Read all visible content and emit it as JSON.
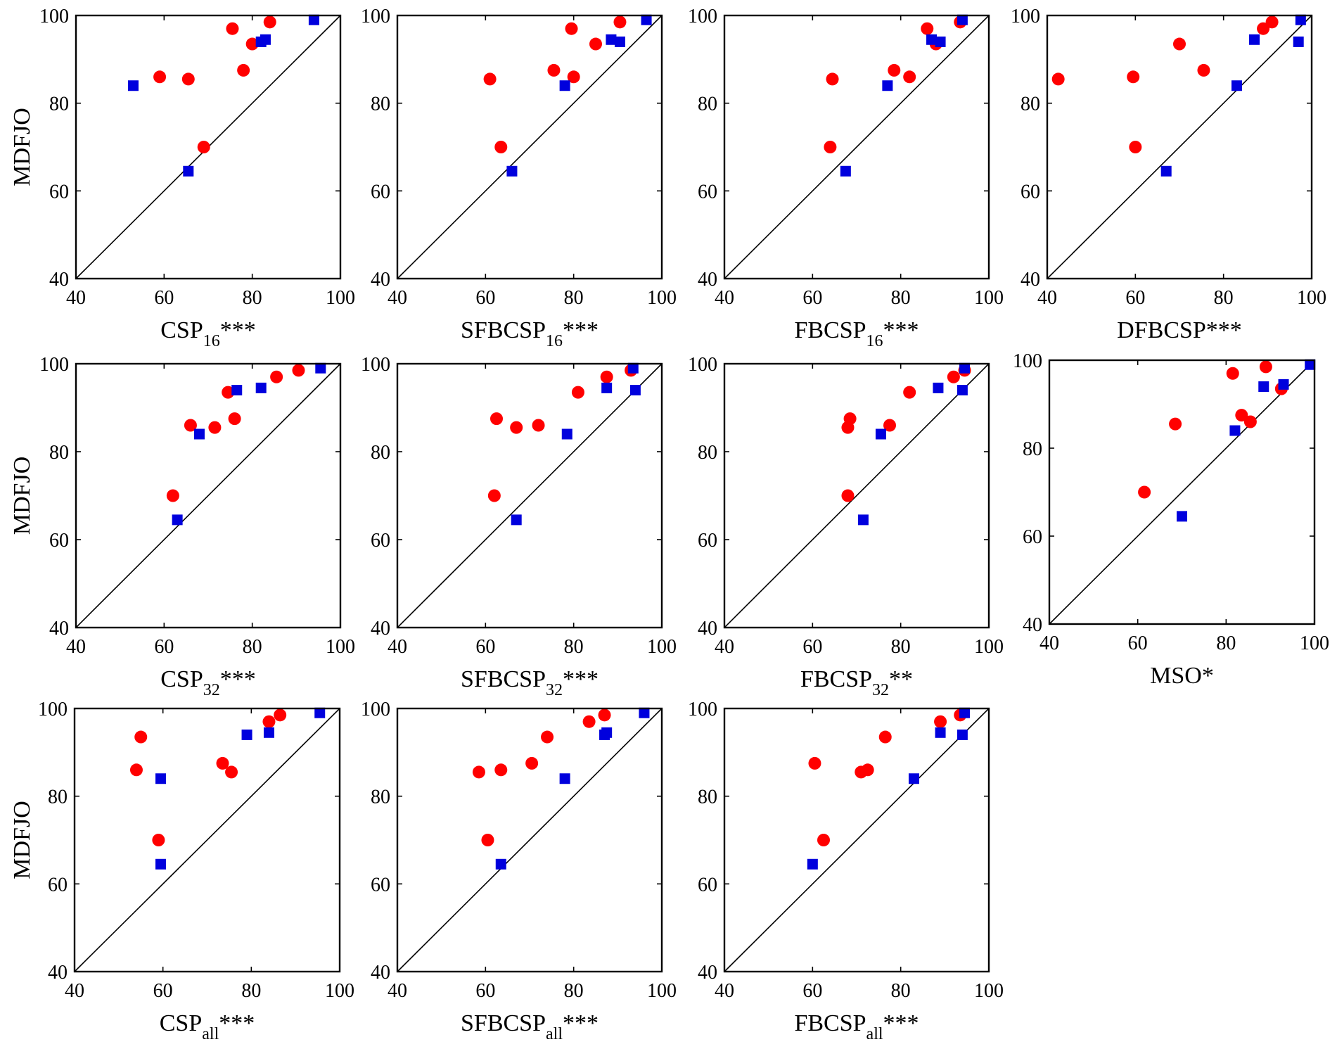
{
  "figure": {
    "y_axis_title": "MDFJO",
    "marker_colors": {
      "circle": "#ff0000",
      "square": "#0000dd"
    }
  },
  "chart_data": [
    {
      "type": "scatter",
      "title": "",
      "xlabel": {
        "base": "CSP",
        "sub": "16",
        "suffix": "***"
      },
      "ylabel": "MDFJO",
      "xlim": [
        40,
        100
      ],
      "ylim": [
        40,
        100
      ],
      "x_ticks": [
        "40",
        "60",
        "80",
        "100"
      ],
      "y_ticks": [
        "40",
        "60",
        "80",
        "100"
      ],
      "diagonal": true,
      "series": [
        {
          "name": "circle",
          "marker": "circle",
          "x": [
            59,
            65.5,
            69,
            75.5,
            78,
            80,
            84
          ],
          "y": [
            86,
            85.5,
            70,
            97,
            87.5,
            93.5,
            98.5
          ]
        },
        {
          "name": "square",
          "marker": "square",
          "x": [
            53,
            65.5,
            82,
            83,
            94
          ],
          "y": [
            84,
            64.5,
            94,
            94.5,
            99
          ]
        }
      ]
    },
    {
      "type": "scatter",
      "title": "",
      "xlabel": {
        "base": "SFBCSP",
        "sub": "16",
        "suffix": "***"
      },
      "ylabel": "",
      "xlim": [
        40,
        100
      ],
      "ylim": [
        40,
        100
      ],
      "x_ticks": [
        "40",
        "60",
        "80",
        "100"
      ],
      "y_ticks": [
        "40",
        "60",
        "80",
        "100"
      ],
      "diagonal": true,
      "series": [
        {
          "name": "circle",
          "marker": "circle",
          "x": [
            61,
            63.5,
            75.5,
            79.5,
            80,
            85,
            90.5
          ],
          "y": [
            85.5,
            70,
            87.5,
            97,
            86,
            93.5,
            98.5
          ]
        },
        {
          "name": "square",
          "marker": "square",
          "x": [
            66,
            78,
            88.5,
            90.5,
            96.5
          ],
          "y": [
            64.5,
            84,
            94.5,
            94,
            99
          ]
        }
      ]
    },
    {
      "type": "scatter",
      "title": "",
      "xlabel": {
        "base": "FBCSP",
        "sub": "16",
        "suffix": "***"
      },
      "ylabel": "",
      "xlim": [
        40,
        100
      ],
      "ylim": [
        40,
        100
      ],
      "x_ticks": [
        "40",
        "60",
        "80",
        "100"
      ],
      "y_ticks": [
        "40",
        "60",
        "80",
        "100"
      ],
      "diagonal": true,
      "series": [
        {
          "name": "circle",
          "marker": "circle",
          "x": [
            64,
            64.5,
            78.5,
            82,
            86,
            88,
            93.5
          ],
          "y": [
            70,
            85.5,
            87.5,
            86,
            97,
            93.5,
            98.5
          ]
        },
        {
          "name": "square",
          "marker": "square",
          "x": [
            67.5,
            77,
            87,
            89,
            94
          ],
          "y": [
            64.5,
            84,
            94.5,
            94,
            99
          ]
        }
      ]
    },
    {
      "type": "scatter",
      "title": "",
      "xlabel": {
        "base": "DFBCSP***",
        "sub": "",
        "suffix": ""
      },
      "ylabel": "",
      "xlim": [
        40,
        100
      ],
      "ylim": [
        40,
        100
      ],
      "x_ticks": [
        "40",
        "60",
        "80",
        "100"
      ],
      "y_ticks": [
        "40",
        "60",
        "80",
        "100"
      ],
      "diagonal": true,
      "series": [
        {
          "name": "circle",
          "marker": "circle",
          "x": [
            42.5,
            59.5,
            60,
            70,
            75.5,
            89,
            91
          ],
          "y": [
            85.5,
            86,
            70,
            93.5,
            87.5,
            97,
            98.5
          ]
        },
        {
          "name": "square",
          "marker": "square",
          "x": [
            67,
            83,
            87,
            97,
            97.5
          ],
          "y": [
            64.5,
            84,
            94.5,
            94,
            99
          ]
        }
      ]
    },
    {
      "type": "scatter",
      "title": "",
      "xlabel": {
        "base": "CSP",
        "sub": "32",
        "suffix": "***"
      },
      "ylabel": "MDFJO",
      "xlim": [
        40,
        100
      ],
      "ylim": [
        40,
        100
      ],
      "x_ticks": [
        "40",
        "60",
        "80",
        "100"
      ],
      "y_ticks": [
        "40",
        "60",
        "80",
        "100"
      ],
      "diagonal": true,
      "series": [
        {
          "name": "circle",
          "marker": "circle",
          "x": [
            62,
            66,
            71.5,
            74.5,
            76,
            85.5,
            90.5
          ],
          "y": [
            70,
            86,
            85.5,
            93.5,
            87.5,
            97,
            98.5
          ]
        },
        {
          "name": "square",
          "marker": "square",
          "x": [
            63,
            68,
            76.5,
            82,
            95.5
          ],
          "y": [
            64.5,
            84,
            94,
            94.5,
            99
          ]
        }
      ]
    },
    {
      "type": "scatter",
      "title": "",
      "xlabel": {
        "base": "SFBCSP",
        "sub": "32",
        "suffix": "***"
      },
      "ylabel": "",
      "xlim": [
        40,
        100
      ],
      "ylim": [
        40,
        100
      ],
      "x_ticks": [
        "40",
        "60",
        "80",
        "100"
      ],
      "y_ticks": [
        "40",
        "60",
        "80",
        "100"
      ],
      "diagonal": true,
      "series": [
        {
          "name": "circle",
          "marker": "circle",
          "x": [
            62,
            62.5,
            67,
            72,
            81,
            87.5,
            93
          ],
          "y": [
            70,
            87.5,
            85.5,
            86,
            93.5,
            97,
            98.5
          ]
        },
        {
          "name": "square",
          "marker": "square",
          "x": [
            67,
            78.5,
            87.5,
            93.5,
            94
          ],
          "y": [
            64.5,
            84,
            94.5,
            99,
            94
          ]
        }
      ]
    },
    {
      "type": "scatter",
      "title": "",
      "xlabel": {
        "base": "FBCSP",
        "sub": "32",
        "suffix": "**"
      },
      "ylabel": "",
      "xlim": [
        40,
        100
      ],
      "ylim": [
        40,
        100
      ],
      "x_ticks": [
        "40",
        "60",
        "80",
        "100"
      ],
      "y_ticks": [
        "40",
        "60",
        "80",
        "100"
      ],
      "diagonal": true,
      "series": [
        {
          "name": "circle",
          "marker": "circle",
          "x": [
            68,
            68,
            68.5,
            77.5,
            82,
            92,
            94.5
          ],
          "y": [
            70,
            85.5,
            87.5,
            86,
            93.5,
            97,
            98.5
          ]
        },
        {
          "name": "square",
          "marker": "square",
          "x": [
            71.5,
            75.5,
            88.5,
            94,
            94.5
          ],
          "y": [
            64.5,
            84,
            94.5,
            94,
            99
          ]
        }
      ]
    },
    {
      "type": "scatter",
      "title": "",
      "xlabel": {
        "base": "MSO*",
        "sub": "",
        "suffix": ""
      },
      "ylabel": "",
      "xlim": [
        40,
        100
      ],
      "ylim": [
        40,
        100
      ],
      "x_ticks": [
        "40",
        "60",
        "80",
        "100"
      ],
      "y_ticks": [
        "40",
        "60",
        "80",
        "100"
      ],
      "diagonal": true,
      "series": [
        {
          "name": "circle",
          "marker": "circle",
          "x": [
            61.5,
            68.5,
            81.5,
            83.5,
            85.5,
            89,
            92.5
          ],
          "y": [
            70,
            85.5,
            97,
            87.5,
            86,
            98.5,
            93.5
          ]
        },
        {
          "name": "square",
          "marker": "square",
          "x": [
            70,
            82,
            88.5,
            93,
            99
          ],
          "y": [
            64.5,
            84,
            94,
            94.5,
            99
          ]
        }
      ]
    },
    {
      "type": "scatter",
      "title": "",
      "xlabel": {
        "base": "CSP",
        "sub": "all",
        "suffix": "***"
      },
      "ylabel": "MDFJO",
      "xlim": [
        40,
        100
      ],
      "ylim": [
        40,
        100
      ],
      "x_ticks": [
        "40",
        "60",
        "80",
        "100"
      ],
      "y_ticks": [
        "40",
        "60",
        "80",
        "100"
      ],
      "diagonal": true,
      "series": [
        {
          "name": "circle",
          "marker": "circle",
          "x": [
            54,
            55,
            59,
            73.5,
            75.5,
            84,
            86.5
          ],
          "y": [
            86,
            93.5,
            70,
            87.5,
            85.5,
            97,
            98.5
          ]
        },
        {
          "name": "square",
          "marker": "square",
          "x": [
            59.5,
            59.5,
            79,
            84,
            95.5
          ],
          "y": [
            64.5,
            84,
            94,
            94.5,
            99
          ]
        }
      ]
    },
    {
      "type": "scatter",
      "title": "",
      "xlabel": {
        "base": "SFBCSP",
        "sub": "all",
        "suffix": "***"
      },
      "ylabel": "",
      "xlim": [
        40,
        100
      ],
      "ylim": [
        40,
        100
      ],
      "x_ticks": [
        "40",
        "60",
        "80",
        "100"
      ],
      "y_ticks": [
        "40",
        "60",
        "80",
        "100"
      ],
      "diagonal": true,
      "series": [
        {
          "name": "circle",
          "marker": "circle",
          "x": [
            58.5,
            60.5,
            63.5,
            70.5,
            74,
            83.5,
            87
          ],
          "y": [
            85.5,
            70,
            86,
            87.5,
            93.5,
            97,
            98.5
          ]
        },
        {
          "name": "square",
          "marker": "square",
          "x": [
            63.5,
            78,
            87,
            87.5,
            96
          ],
          "y": [
            64.5,
            84,
            94,
            94.5,
            99
          ]
        }
      ]
    },
    {
      "type": "scatter",
      "title": "",
      "xlabel": {
        "base": "FBCSP",
        "sub": "all",
        "suffix": "***"
      },
      "ylabel": "",
      "xlim": [
        40,
        100
      ],
      "ylim": [
        40,
        100
      ],
      "x_ticks": [
        "40",
        "60",
        "80",
        "100"
      ],
      "y_ticks": [
        "40",
        "60",
        "80",
        "100"
      ],
      "diagonal": true,
      "series": [
        {
          "name": "circle",
          "marker": "circle",
          "x": [
            60.5,
            62.5,
            71,
            72.5,
            76.5,
            89,
            93.5
          ],
          "y": [
            87.5,
            70,
            85.5,
            86,
            93.5,
            97,
            98.5
          ]
        },
        {
          "name": "square",
          "marker": "square",
          "x": [
            60,
            83,
            89,
            94,
            94.5
          ],
          "y": [
            64.5,
            84,
            94.5,
            94,
            99
          ]
        }
      ]
    }
  ]
}
